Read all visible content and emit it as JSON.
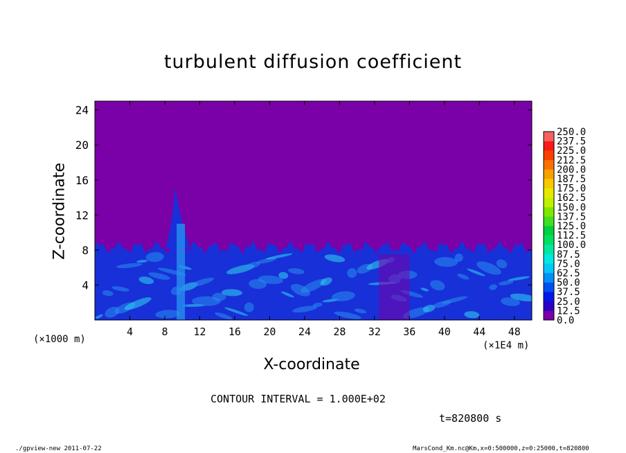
{
  "chart_data": {
    "type": "heatmap",
    "title": "turbulent diffusion coefficient",
    "xlabel": "X-coordinate",
    "ylabel": "Z-coordinate",
    "x_unit_left": "(×1000 m)",
    "x_unit_right": "(×1E4 m)",
    "xlim": [
      0,
      50
    ],
    "ylim": [
      0,
      25
    ],
    "xticks": [
      "4",
      "8",
      "12",
      "16",
      "20",
      "24",
      "28",
      "32",
      "36",
      "40",
      "44",
      "48"
    ],
    "yticks": [
      "4",
      "8",
      "12",
      "16",
      "20",
      "24"
    ],
    "colorbar": {
      "levels": [
        "0.0",
        "12.5",
        "25.0",
        "37.5",
        "50.0",
        "62.5",
        "75.0",
        "87.5",
        "100.0",
        "112.5",
        "125.0",
        "137.5",
        "150.0",
        "162.5",
        "175.0",
        "187.5",
        "200.0",
        "212.5",
        "225.0",
        "237.5",
        "250.0"
      ],
      "colors": [
        "#7a00a8",
        "#2a00c8",
        "#0018e8",
        "#0050f0",
        "#0090f8",
        "#00c8f8",
        "#00e8e0",
        "#00e8a0",
        "#00e060",
        "#00d040",
        "#40e020",
        "#80e800",
        "#c0f000",
        "#e8e800",
        "#f8c800",
        "#f8a000",
        "#f87000",
        "#f84000",
        "#f81818",
        "#f86060"
      ]
    },
    "background_value": 0.0,
    "layer_top_z": 8.3,
    "plume": {
      "x": 9.2,
      "peak_z": 15.2
    },
    "contour_interval": "CONTOUR INTERVAL = 1.000E+02",
    "time_label": "t=820800 s"
  },
  "footer": {
    "left": "./gpview-new  2011-07-22",
    "right": "MarsCond_Km.nc@Km,x=0:500000,z=0:25000,t=820800"
  },
  "colors": {
    "background": "#7a00a8",
    "deep_blue": "#1830d8",
    "light_blue": "#2890f0",
    "cyan": "#30d8f0"
  }
}
